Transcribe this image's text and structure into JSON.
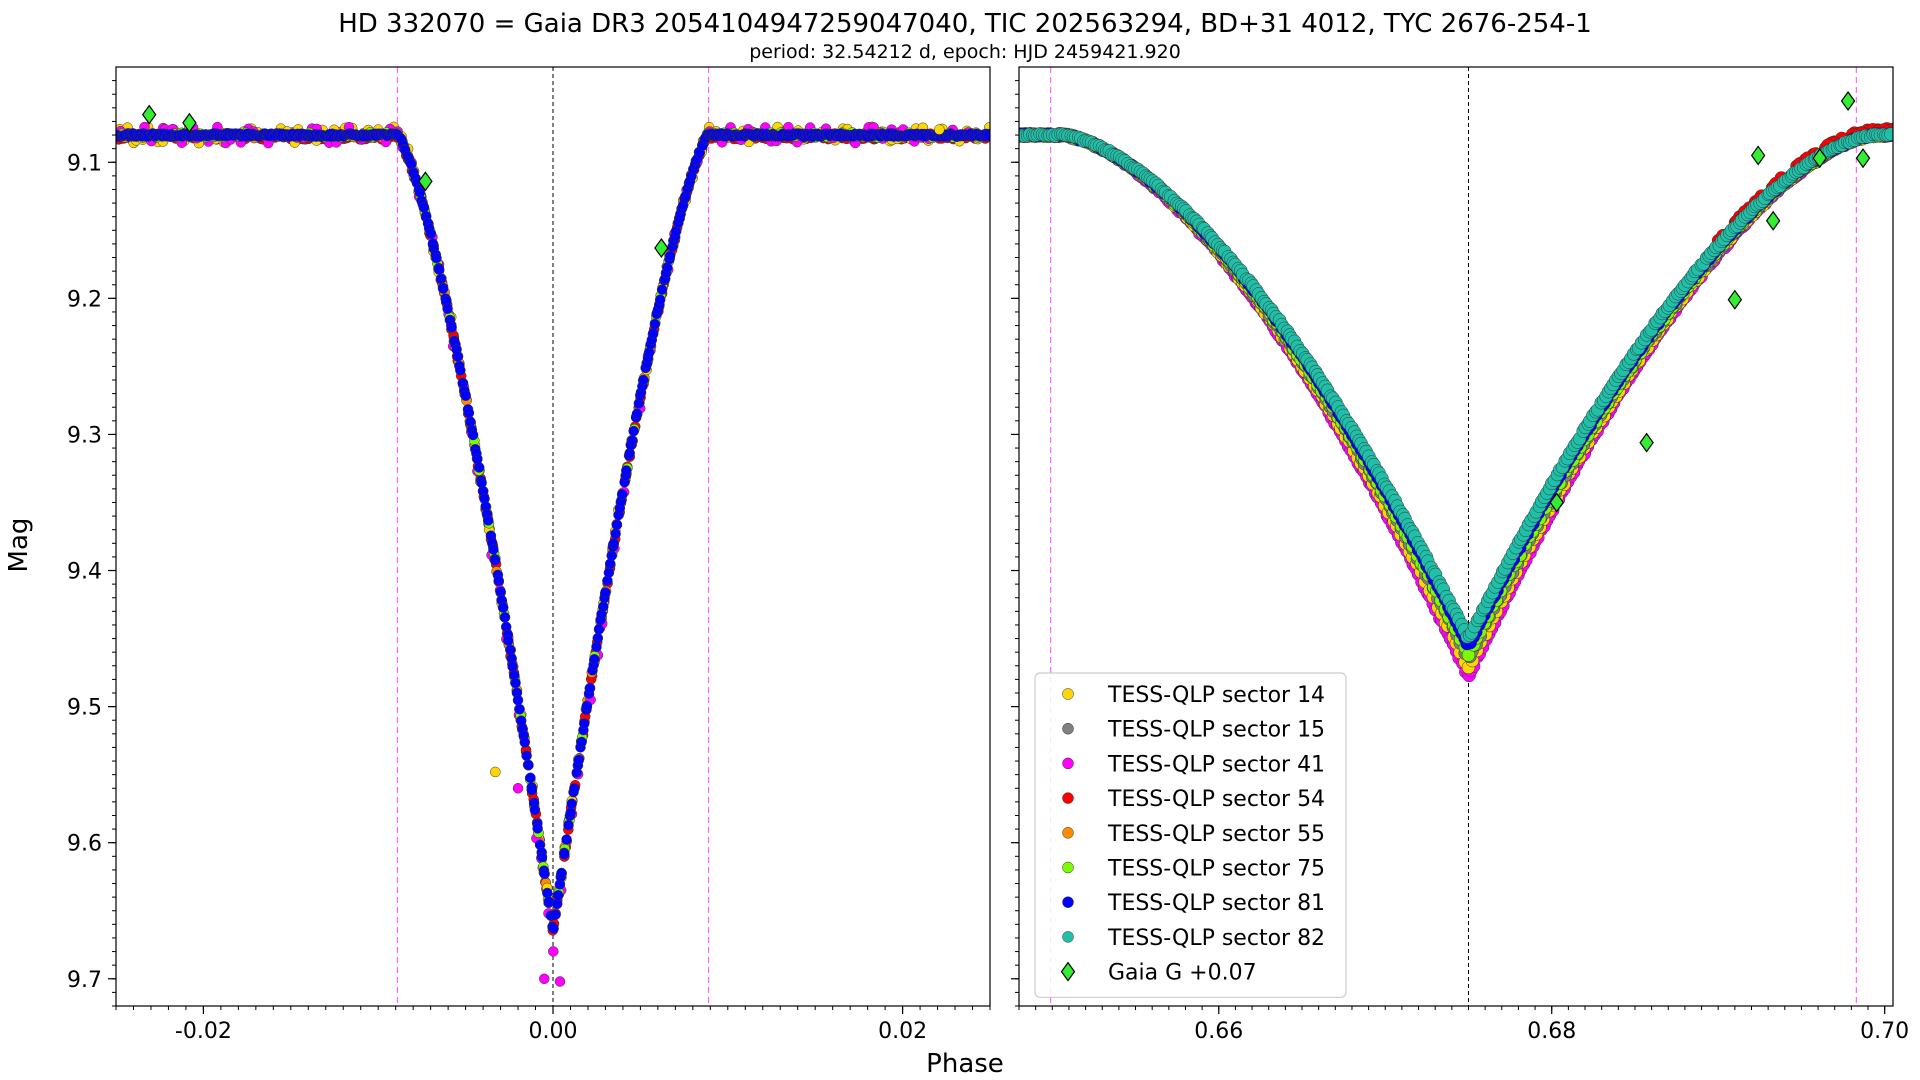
{
  "chart_data": {
    "type": "scatter",
    "title": "HD 332070 = Gaia DR3 2054104947259047040, TIC 202563294, BD+31 4012, TYC 2676-254-1",
    "subtitle": "period: 32.54212 d, epoch: HJD 2459421.920",
    "xlabel": "Phase",
    "ylabel": "Mag",
    "y_inverted": true,
    "legend_position": "lower-left of right panel",
    "series": [
      {
        "name": "TESS-QLP sector 14",
        "color": "#ffd700",
        "marker": "circle"
      },
      {
        "name": "TESS-QLP sector 15",
        "color": "#808080",
        "marker": "circle"
      },
      {
        "name": "TESS-QLP sector 41",
        "color": "#ff00ff",
        "marker": "circle"
      },
      {
        "name": "TESS-QLP sector 54",
        "color": "#ff0000",
        "marker": "circle"
      },
      {
        "name": "TESS-QLP sector 55",
        "color": "#ff8c00",
        "marker": "circle"
      },
      {
        "name": "TESS-QLP sector 75",
        "color": "#7cfc00",
        "marker": "circle"
      },
      {
        "name": "TESS-QLP sector 81",
        "color": "#0000ff",
        "marker": "circle"
      },
      {
        "name": "TESS-QLP sector 82",
        "color": "#20c0a8",
        "marker": "circle"
      },
      {
        "name": "Gaia G +0.07",
        "color": "#33ee33",
        "marker": "diamond"
      }
    ],
    "panels": [
      {
        "xlim": [
          -0.025,
          0.025
        ],
        "ylim": [
          9.72,
          9.03
        ],
        "xticks": [
          "-0.02",
          "0.00",
          "0.02"
        ],
        "xtick_values": [
          -0.02,
          0.0,
          0.02
        ],
        "yticks": [
          "9.1",
          "9.2",
          "9.3",
          "9.4",
          "9.5",
          "9.6",
          "9.7"
        ],
        "ytick_values": [
          9.1,
          9.2,
          9.3,
          9.4,
          9.5,
          9.6,
          9.7
        ],
        "center_line": 0.0,
        "edge_lines": [
          -0.0089,
          0.0089
        ],
        "eclipse": {
          "center": 0.0,
          "half_width": 0.0089,
          "baseline": 9.08,
          "depth": {
            "sector 81": 9.665,
            "sector 41": 9.7
          }
        },
        "gaia_points": [
          {
            "x": -0.0231,
            "y": 9.065
          },
          {
            "x": -0.0208,
            "y": 9.071
          },
          {
            "x": -0.0073,
            "y": 9.114
          },
          {
            "x": 0.0062,
            "y": 9.163
          }
        ],
        "outliers": [
          {
            "x": -0.0033,
            "y": 9.548,
            "series": "TESS-QLP sector 14"
          },
          {
            "x": -0.002,
            "y": 9.56,
            "series": "TESS-QLP sector 41"
          },
          {
            "x": -0.0005,
            "y": 9.7,
            "series": "TESS-QLP sector 41"
          },
          {
            "x": 0.0004,
            "y": 9.702,
            "series": "TESS-QLP sector 41"
          },
          {
            "x": 0.0221,
            "y": 9.076,
            "series": "TESS-QLP sector 14"
          }
        ]
      },
      {
        "xlim": [
          0.648,
          0.7005
        ],
        "ylim": [
          9.72,
          9.03
        ],
        "xticks": [
          "0.66",
          "0.68",
          "0.70"
        ],
        "xtick_values": [
          0.66,
          0.68,
          0.7
        ],
        "yticks": [],
        "center_line": 0.675,
        "edge_lines": [
          0.6499,
          0.6983
        ],
        "eclipse": {
          "center": 0.675,
          "half_width": 0.0245,
          "baseline": 9.08,
          "depth": {
            "sector 82": 9.45,
            "sector 81": 9.455,
            "sector 15": 9.465,
            "sector 14": 9.472,
            "sector 41": 9.478
          }
        },
        "gaia_points": [
          {
            "x": 0.6803,
            "y": 9.35
          },
          {
            "x": 0.6857,
            "y": 9.306
          },
          {
            "x": 0.691,
            "y": 9.201
          },
          {
            "x": 0.6924,
            "y": 9.095
          },
          {
            "x": 0.6933,
            "y": 9.143
          },
          {
            "x": 0.6961,
            "y": 9.097
          },
          {
            "x": 0.6978,
            "y": 9.055
          },
          {
            "x": 0.6987,
            "y": 9.097
          }
        ]
      }
    ]
  }
}
